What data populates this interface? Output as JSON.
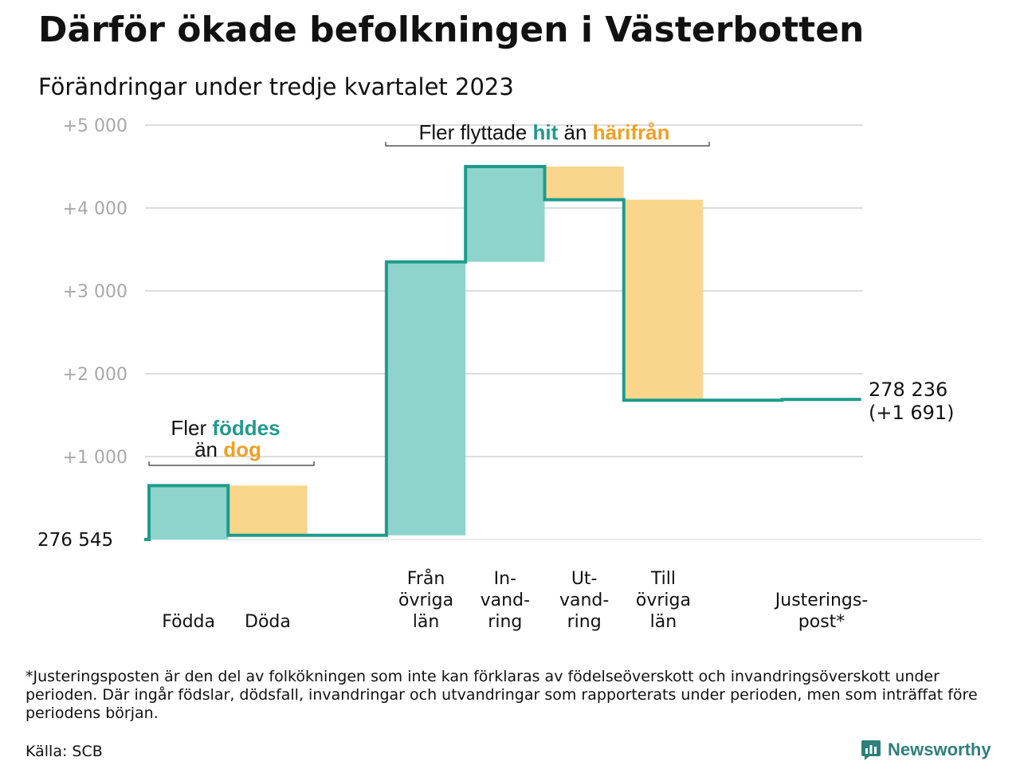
{
  "title": "Därför ökade befolkningen i Västerbotten",
  "subtitle": "Förändringar under tredje kvartalet 2023",
  "colors": {
    "increase": "#8dd5cc",
    "decrease": "#fad68c",
    "line": "#1f9b8c",
    "accent_hit": "#1f9b8c",
    "accent_bort": "#f0a023",
    "grid": "#dddddd"
  },
  "chart_data": {
    "type": "waterfall",
    "start_value": 276545,
    "start_label": "276   545",
    "end_label_1": "278 236",
    "end_label_2": "(+1 691)",
    "ylim": [
      0,
      5000
    ],
    "yticks": [
      {
        "value": 1000,
        "label": "+1   000"
      },
      {
        "value": 2000,
        "label": "+2   000"
      },
      {
        "value": 3000,
        "label": "+3   000"
      },
      {
        "value": 4000,
        "label": "+4   000"
      },
      {
        "value": 5000,
        "label": "+5   000"
      }
    ],
    "steps": [
      {
        "lines": [
          "Födda"
        ],
        "value": 650
      },
      {
        "lines": [
          "Döda"
        ],
        "value": -600
      },
      {
        "lines": [],
        "value": 0
      },
      {
        "lines": [
          "Från",
          "övriga",
          "län"
        ],
        "value": 3300
      },
      {
        "lines": [
          "In-",
          "vand-",
          "ring"
        ],
        "value": 1150
      },
      {
        "lines": [
          "Ut-",
          "vand-",
          "ring"
        ],
        "value": -400
      },
      {
        "lines": [
          "Till",
          "övriga",
          "län"
        ],
        "value": -2420
      },
      {
        "lines": [],
        "value": 0
      },
      {
        "lines": [
          "Justerings-",
          "post*"
        ],
        "value": 10
      }
    ],
    "annotations": {
      "births": {
        "line1_pre": "Fler ",
        "line1_hl": "föddes",
        "line2_pre": "än ",
        "line2_hl": "dog"
      },
      "migration": {
        "pre": "Fler flyttade ",
        "hl1": "hit",
        "mid": " än ",
        "hl2": "härifrån"
      }
    }
  },
  "footnote": "*Justeringsposten är den del av folkökningen som inte kan förklaras av födelseöverskott och invandringsöverskott under perioden. Där ingår födslar, dödsfall, invandringar och utvandringar som rapporterats under perioden, men som inträffat före periodens början.",
  "source": "Källa: SCB",
  "logo_text": "Newsworthy"
}
